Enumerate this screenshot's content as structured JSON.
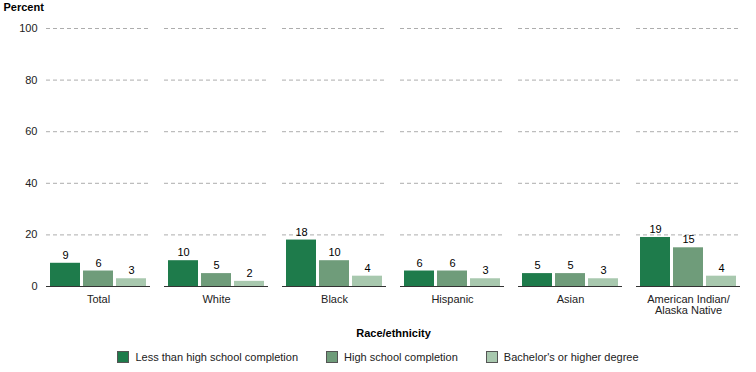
{
  "chart_data": {
    "type": "bar",
    "y_label": "Percent",
    "x_label": "Race/ethnicity",
    "categories": [
      "Total",
      "White",
      "Black",
      "Hispanic",
      "Asian",
      "American Indian/Alaska Native"
    ],
    "series": [
      {
        "name": "Less than high school completion",
        "color": "#1e7b4b",
        "values": [
          9,
          10,
          18,
          6,
          5,
          19
        ]
      },
      {
        "name": "High school completion",
        "color": "#6f9c7a",
        "values": [
          6,
          5,
          10,
          6,
          5,
          15
        ]
      },
      {
        "name": "Bachelor's or higher degree",
        "color": "#a8c8ae",
        "values": [
          3,
          2,
          4,
          3,
          3,
          4
        ]
      }
    ],
    "ylim": [
      0,
      100
    ],
    "yticks": [
      0,
      20,
      40,
      60,
      80,
      100
    ],
    "grid": true,
    "data_labels": true,
    "legend": "bottom"
  }
}
